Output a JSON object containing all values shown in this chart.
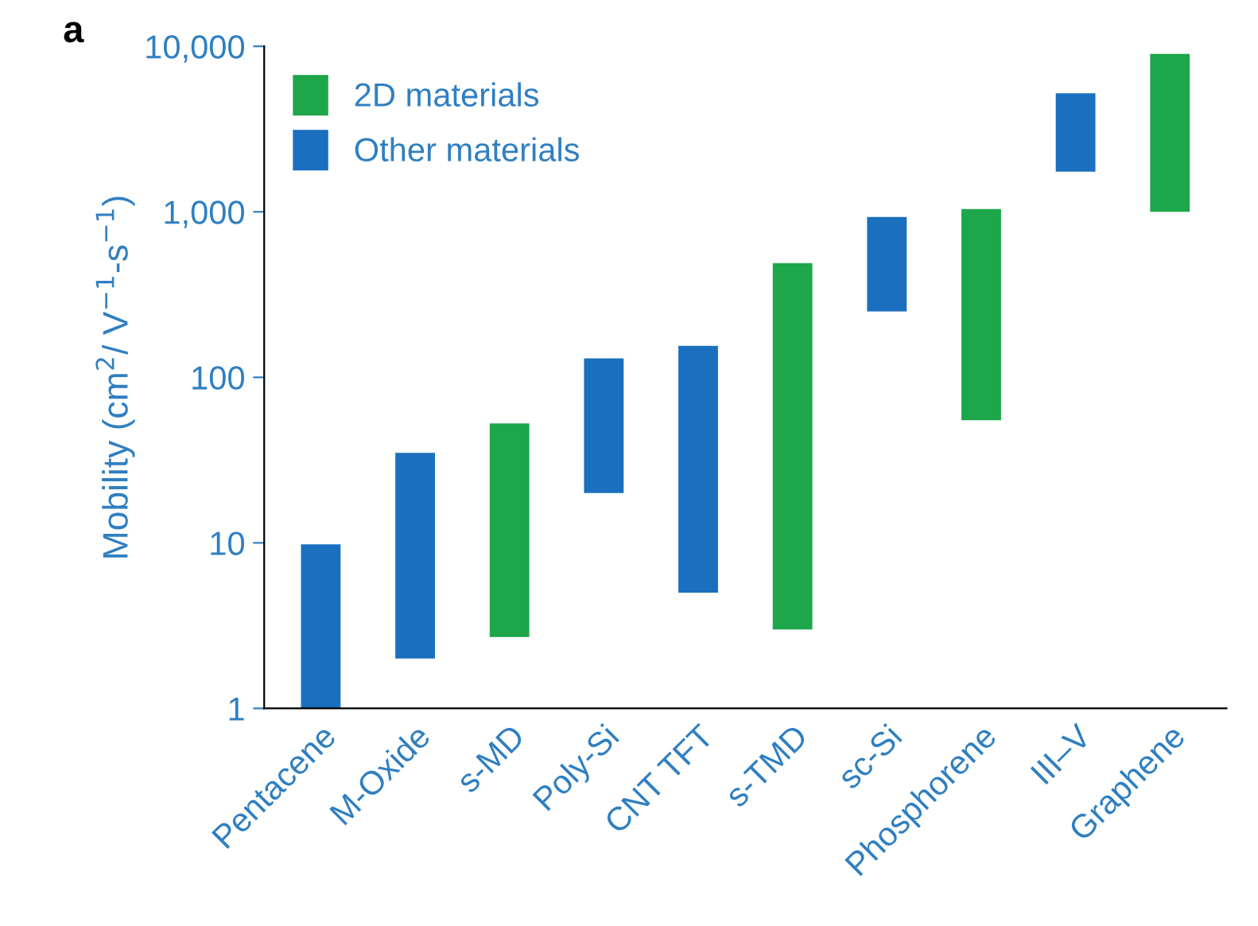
{
  "chart_data": {
    "type": "bar",
    "ylabel": "Mobility (cm$^{2}$/ V$^{−1}$-s$^{−1}$)",
    "annotations": [
      "a"
    ],
    "categories": [
      "Pentacene",
      "M-Oxide",
      "s-MD",
      "Poly-Si",
      "CNT TFT",
      "s-TMD",
      "sc-Si",
      "Phosphorene",
      "III–V",
      "Graphene"
    ],
    "series": [
      {
        "name": "2D materials",
        "color": "#1ea64b",
        "base": [
          null,
          null,
          2.7,
          null,
          null,
          3,
          null,
          55,
          null,
          1000
        ],
        "values": [
          null,
          null,
          50,
          null,
          null,
          487,
          null,
          985,
          null,
          8000
        ]
      },
      {
        "name": "Other materials",
        "color": "#1a6fbf",
        "base": [
          1,
          2,
          null,
          20,
          5,
          null,
          250,
          null,
          1750,
          null
        ],
        "values": [
          8.8,
          33,
          null,
          110,
          150,
          null,
          680,
          null,
          3450,
          null
        ]
      }
    ],
    "log": true,
    "ylim": [
      1,
      10000
    ],
    "yticks": [
      1,
      10,
      100,
      {
        "value": 1000,
        "label": "1,000"
      },
      {
        "value": 10000,
        "label": "10,000"
      }
    ],
    "grid": false,
    "legend": "top left"
  }
}
